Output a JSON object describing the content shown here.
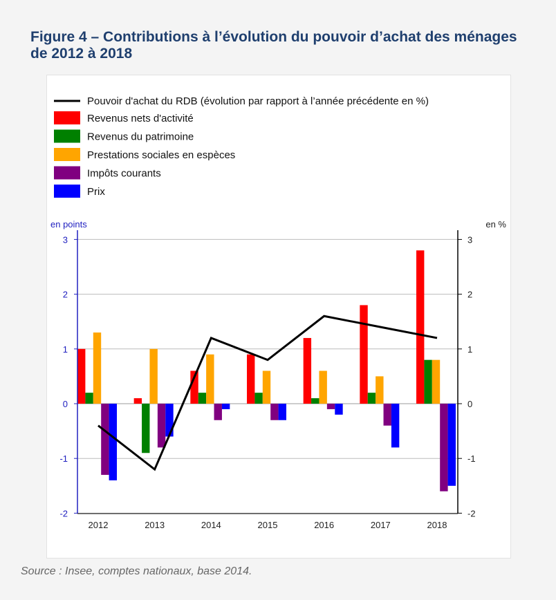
{
  "title": "Figure 4 – Contributions à l’évolution du pouvoir d’achat des ménages de 2012 à 2018",
  "source": "Source : Insee, comptes nationaux, base 2014.",
  "chart_data": {
    "type": "bar",
    "title": "",
    "categories": [
      "2012",
      "2013",
      "2014",
      "2015",
      "2016",
      "2017",
      "2018"
    ],
    "ylabel_left": "en points",
    "ylabel_right": "en %",
    "ylim": [
      -2,
      3
    ],
    "yticks": [
      -2,
      -1,
      0,
      1,
      2,
      3
    ],
    "grid": true,
    "legend_position": "top",
    "series": [
      {
        "name": "Revenus nets d'activité",
        "kind": "bar",
        "color": "#ff0000",
        "values": [
          1.0,
          0.1,
          0.6,
          0.9,
          1.2,
          1.8,
          2.8
        ]
      },
      {
        "name": "Revenus du patrimoine",
        "kind": "bar",
        "color": "#008000",
        "values": [
          0.2,
          -0.9,
          0.2,
          0.2,
          0.1,
          0.2,
          0.8
        ]
      },
      {
        "name": "Prestations sociales en espèces",
        "kind": "bar",
        "color": "#ffa500",
        "values": [
          1.3,
          1.0,
          0.9,
          0.6,
          0.6,
          0.5,
          0.8
        ]
      },
      {
        "name": "Impôts courants",
        "kind": "bar",
        "color": "#800080",
        "values": [
          -1.3,
          -0.8,
          -0.3,
          -0.3,
          -0.1,
          -0.4,
          -1.6
        ]
      },
      {
        "name": "Prix",
        "kind": "bar",
        "color": "#0000ff",
        "values": [
          -1.4,
          -0.6,
          -0.1,
          -0.3,
          -0.2,
          -0.8,
          -1.5
        ]
      }
    ],
    "line": {
      "name": "Pouvoir d'achat du RDB (évolution par rapport à l’année précédente en %)",
      "color": "#000000",
      "values": [
        -0.4,
        -1.2,
        1.2,
        0.8,
        1.6,
        1.4,
        1.2
      ]
    }
  }
}
